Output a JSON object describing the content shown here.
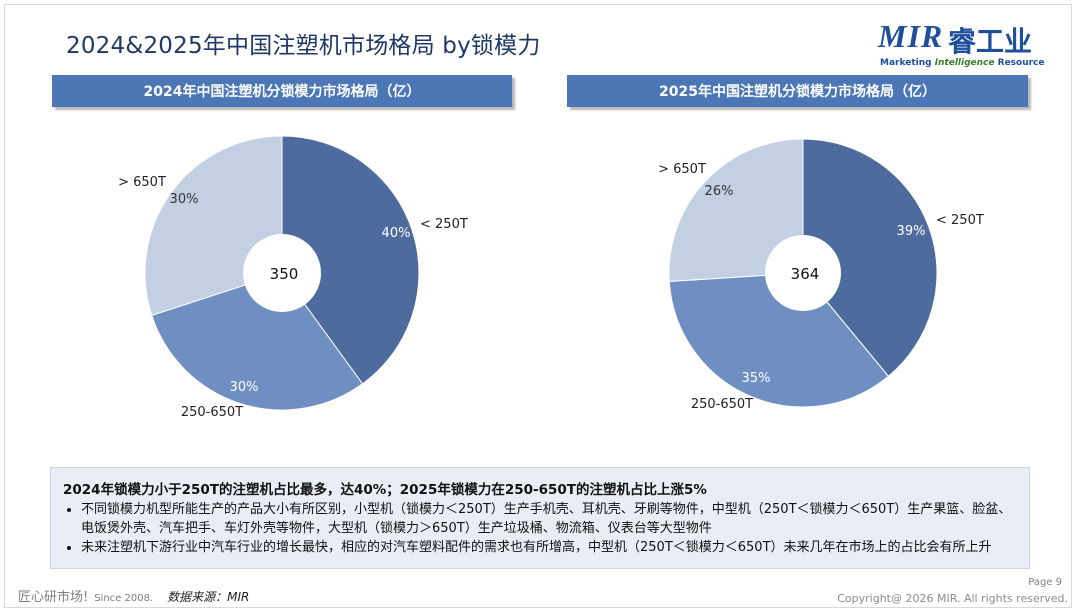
{
  "title": "2024&2025年中国注塑机市场格局 by锁模力",
  "logo": {
    "brand": "MIR",
    "cn": "睿工业",
    "tagline_a": "Marketing ",
    "tagline_b": "Intelligence",
    "tagline_c": " Resource"
  },
  "colors": {
    "dark_slice": "#4e6b9e",
    "mid_slice": "#6f8fc2",
    "light_slice": "#c3cfe2",
    "header": "#4b77b7"
  },
  "left_header": "2024年中国注塑机分锁模力市场格局（亿）",
  "right_header": "2025年中国注塑机分锁模力市场格局（亿）",
  "chart_data": [
    {
      "type": "pie",
      "title": "2024年中国注塑机分锁模力市场格局（亿）",
      "total": "350",
      "slices": [
        {
          "label": "< 250T",
          "value": 40,
          "pct": "40%"
        },
        {
          "label": "250-650T",
          "value": 30,
          "pct": "30%"
        },
        {
          "label": "> 650T",
          "value": 30,
          "pct": "30%"
        }
      ]
    },
    {
      "type": "pie",
      "title": "2025年中国注塑机分锁模力市场格局（亿）",
      "total": "364",
      "slices": [
        {
          "label": "< 250T",
          "value": 39,
          "pct": "39%"
        },
        {
          "label": "250-650T",
          "value": 35,
          "pct": "35%"
        },
        {
          "label": "> 650T",
          "value": 26,
          "pct": "26%"
        }
      ]
    }
  ],
  "summary": {
    "headline": "2024年锁模力小于250T的注塑机占比最多，达40%；2025年锁模力在250-650T的注塑机占比上涨5%",
    "bullets": [
      "不同锁模力机型所能生产的产品大小有所区别，小型机（锁模力＜250T）生产手机壳、耳机壳、牙刷等物件，中型机（250T＜锁模力＜650T）生产果篮、脸盆、电饭煲外壳、汽车把手、车灯外壳等物件，大型机（锁模力＞650T）生产垃圾桶、物流箱、仪表台等大型物件",
      "未来注塑机下游行业中汽车行业的增长最快，相应的对汽车塑料配件的需求也有所增高，中型机（250T＜锁模力＜650T）未来几年在市场上的占比会有所上升"
    ]
  },
  "footer": {
    "brand": "匠心研市场!",
    "since": "Since 2008.",
    "source": "数据来源：MIR",
    "page": "Page 9",
    "copyright": "Copyright@ 2026 MIR. All rights reserved."
  }
}
